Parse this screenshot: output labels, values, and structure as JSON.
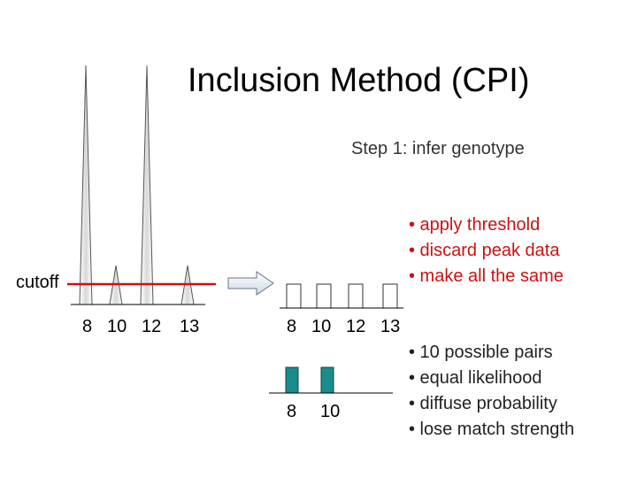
{
  "title": "Inclusion Method (CPI)",
  "subtitle": "Step 1: infer genotype",
  "cutoff_label": "cutoff",
  "threshold_steps": [
    "• apply threshold",
    "• discard peak data",
    "• make all the same"
  ],
  "genotype_notes": [
    "• 10 possible pairs",
    "• equal likelihood",
    "• diffuse probability",
    "• lose match strength"
  ],
  "peak_labels": [
    "8",
    "10",
    "12",
    "13"
  ],
  "binned_labels": [
    "8",
    "10",
    "12",
    "13"
  ],
  "genotype_labels": [
    "8",
    "10"
  ],
  "colors": {
    "cutoff_line": "#cc1111",
    "genotype_bar": "#1a8c8c",
    "list_red": "#cc1111"
  },
  "icons": {
    "arrow": "right-arrow-icon"
  }
}
